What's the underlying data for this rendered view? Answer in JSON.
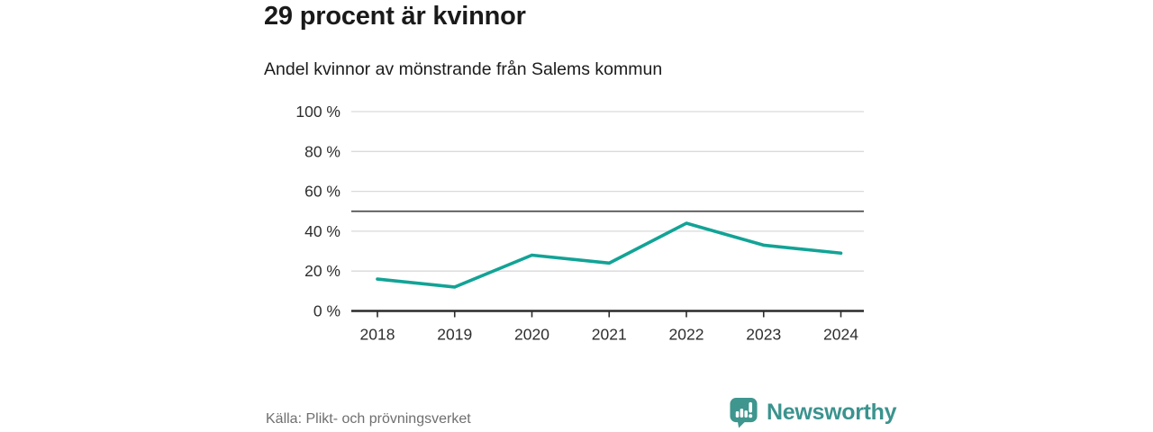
{
  "header": {
    "title": "29 procent är kvinnor",
    "subtitle": "Andel kvinnor av mönstrande från Salems kommun"
  },
  "chart_data": {
    "type": "line",
    "categories": [
      "2018",
      "2019",
      "2020",
      "2021",
      "2022",
      "2023",
      "2024"
    ],
    "series": [
      {
        "name": "Andel kvinnor av mönstrande",
        "values": [
          16,
          12,
          28,
          24,
          44,
          33,
          29
        ]
      }
    ],
    "title": "29 procent är kvinnor",
    "subtitle": "Andel kvinnor av mönstrande från Salems kommun",
    "xlabel": "",
    "ylabel": "",
    "ylim": [
      0,
      100
    ],
    "yticks": [
      0,
      20,
      40,
      60,
      80,
      100
    ],
    "ytick_suffix": " %",
    "reference_line": 50,
    "grid": true,
    "legend": "none",
    "colors": {
      "line": "#12a396",
      "gridline": "#dadada",
      "reference_line": "#4e4e4e",
      "axis": "#2b2b2b",
      "tick_label": "#2e2e2e"
    }
  },
  "footer": {
    "source": "Källa: Plikt- och prövningsverket"
  },
  "logo": {
    "brand": "Newsworthy",
    "icon": "newsworthy-speech-bubble-barchart-icon",
    "color": "#3b938e",
    "icon_color": "#3e968f"
  }
}
